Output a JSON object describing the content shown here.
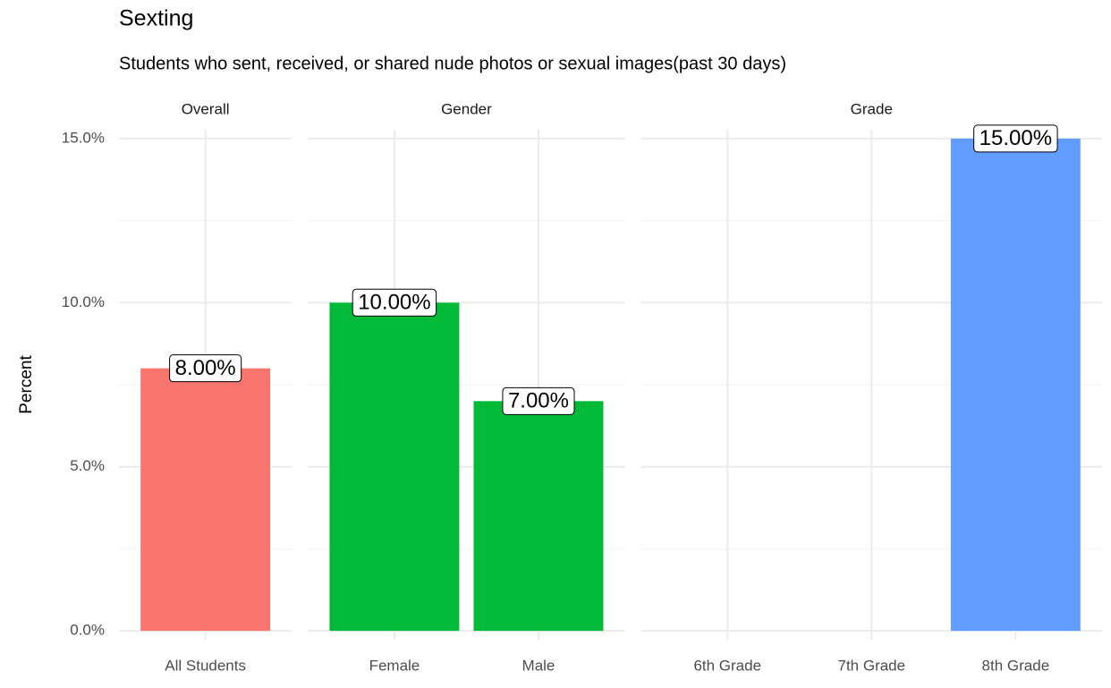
{
  "chart_data": {
    "type": "bar",
    "title": "Sexting",
    "subtitle": "Students who sent, received, or shared nude photos or sexual images(past 30 days)",
    "y_label": "Percent",
    "ylim": [
      -0.27,
      15.27
    ],
    "yticks": [
      {
        "value": 0,
        "label": "0.0%"
      },
      {
        "value": 5,
        "label": "5.0%"
      },
      {
        "value": 10,
        "label": "10.0%"
      },
      {
        "value": 15,
        "label": "15.0%"
      }
    ],
    "grid": true,
    "facets": [
      {
        "name": "Overall",
        "color": "#F8766D",
        "categories": [
          "All Students"
        ],
        "values": [
          8
        ],
        "value_labels": [
          "8.00%"
        ]
      },
      {
        "name": "Gender",
        "color": "#00BA38",
        "categories": [
          "Female",
          "Male"
        ],
        "values": [
          10,
          7
        ],
        "value_labels": [
          "10.00%",
          "7.00%"
        ]
      },
      {
        "name": "Grade",
        "color": "#619CFF",
        "categories": [
          "6th Grade",
          "7th Grade",
          "8th Grade"
        ],
        "values": [
          null,
          null,
          15
        ],
        "value_labels": [
          null,
          null,
          "15.00%"
        ]
      }
    ]
  }
}
